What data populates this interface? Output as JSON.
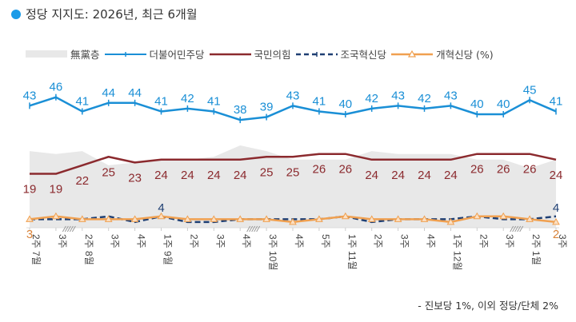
{
  "title": "정당 지지도: 2026년, 최근 6개월",
  "legend": [
    {
      "label": "無黨층",
      "key": "independent"
    },
    {
      "label": "더불어민주당",
      "key": "dp"
    },
    {
      "label": "국민의힘",
      "key": "ppp"
    },
    {
      "label": "조국혁신당",
      "key": "rk"
    },
    {
      "label": "개혁신당 (%)",
      "key": "rp"
    }
  ],
  "footnote": "- 진보당 1%, 이외 정당/단체 2%",
  "colors": {
    "dp": "#1a8fd6",
    "ppp": "#8b2a2e",
    "rk": "#1f3f73",
    "rp": "#f0a050",
    "independent": "#e8e8e8",
    "title_dot": "#1a9be8"
  },
  "chart_data": {
    "type": "line",
    "title": "정당 지지도: 2026년, 최근 6개월",
    "xlabel": "",
    "ylabel": "%",
    "categories": [
      "7월 2주",
      "3주",
      "8월 2주",
      "3주",
      "4주",
      "9월 1주",
      "2주",
      "3주",
      "4주",
      "10월 3주",
      "4주",
      "5주",
      "11월 1주",
      "2주",
      "3주",
      "4주",
      "12월 1주",
      "2주",
      "3주",
      "1월 2주",
      "3주"
    ],
    "axis_breaks_after_index": [
      1,
      8,
      18
    ],
    "series": [
      {
        "name": "더불어민주당",
        "values": [
          43,
          46,
          41,
          44,
          44,
          41,
          42,
          41,
          38,
          39,
          43,
          41,
          40,
          42,
          43,
          42,
          43,
          40,
          40,
          45,
          41
        ]
      },
      {
        "name": "국민의힘",
        "values": [
          19,
          19,
          22,
          25,
          23,
          24,
          24,
          24,
          24,
          25,
          25,
          26,
          26,
          24,
          24,
          24,
          24,
          26,
          26,
          26,
          24
        ]
      },
      {
        "name": "조국혁신당",
        "values": [
          3,
          3,
          3,
          4,
          2,
          4,
          2,
          2,
          3,
          3,
          3,
          3,
          4,
          2,
          3,
          3,
          3,
          4,
          3,
          3,
          4
        ]
      },
      {
        "name": "개혁신당",
        "values": [
          3,
          4,
          3,
          3,
          3,
          4,
          3,
          3,
          3,
          3,
          2,
          3,
          4,
          3,
          3,
          3,
          2,
          4,
          4,
          3,
          2
        ]
      },
      {
        "name": "無黨층",
        "type": "area",
        "values": [
          27,
          26,
          27,
          22,
          23,
          24,
          24,
          25,
          29,
          27,
          24,
          24,
          24,
          27,
          26,
          26,
          26,
          24,
          24,
          21,
          24
        ]
      }
    ],
    "labeled_points": {
      "조국혁신당": [
        {
          "index": 5,
          "value": 4
        },
        {
          "index": 20,
          "value": 4
        }
      ],
      "개혁신당": [
        {
          "index": 0,
          "value": 3
        },
        {
          "index": 20,
          "value": 2
        }
      ]
    },
    "legend_position": "top",
    "grid": false
  }
}
